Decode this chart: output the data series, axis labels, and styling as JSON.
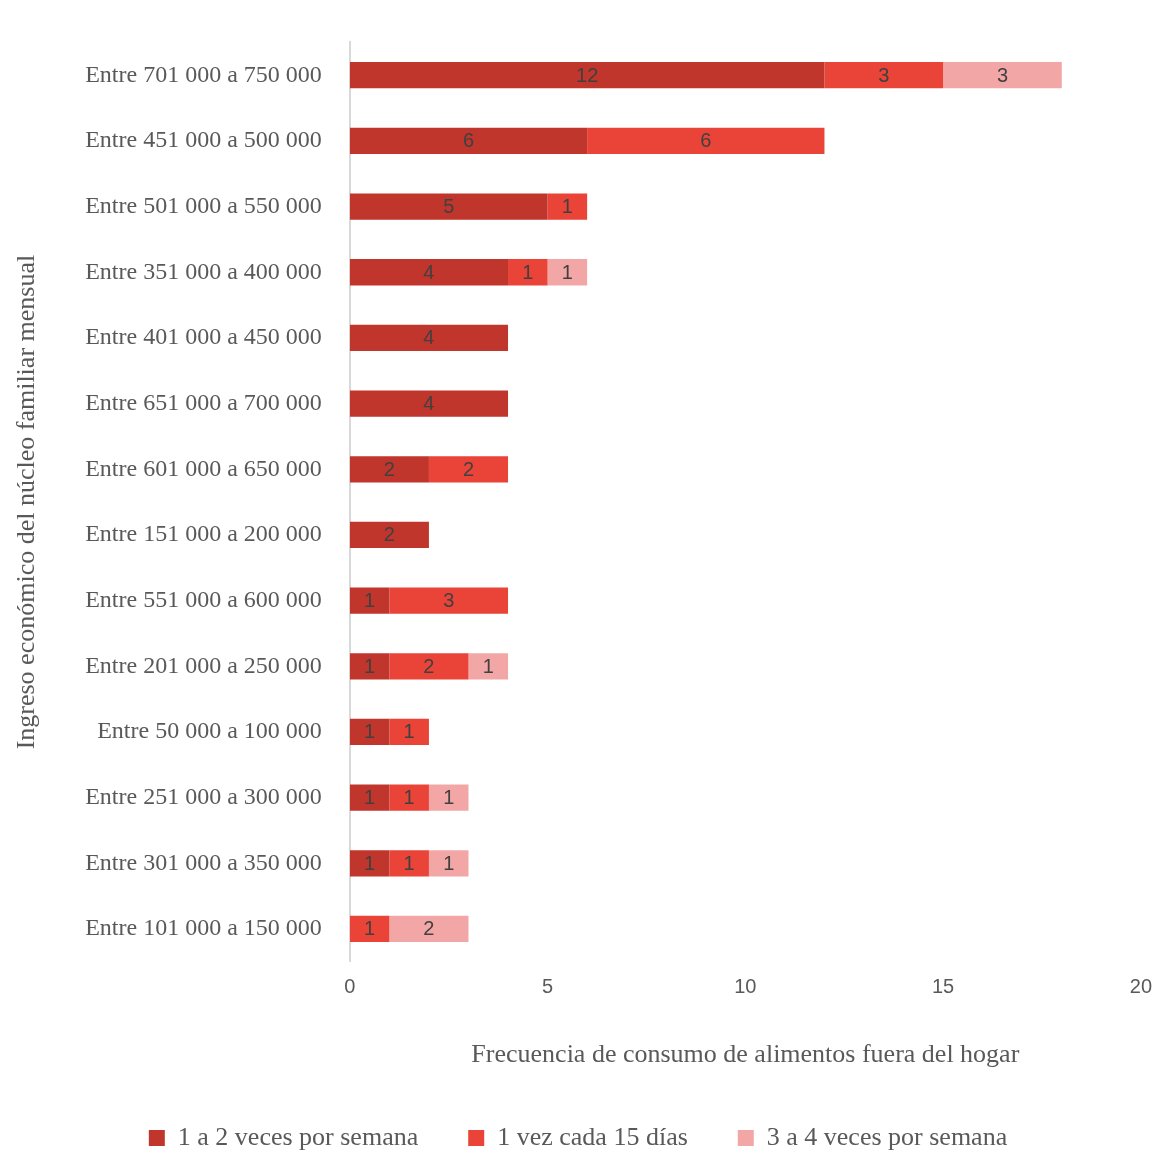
{
  "chart_data": {
    "type": "bar",
    "orientation": "horizontal",
    "stacked": true,
    "xlabel": "Frecuencia de consumo de alimentos fuera del hogar",
    "ylabel": "Ingreso económico del núcleo familiar mensual",
    "categories": [
      "Entre 701 000 a 750 000",
      "Entre 451 000 a 500 000",
      "Entre 501 000 a 550 000",
      "Entre 351 000 a 400 000",
      "Entre 401 000 a 450 000",
      "Entre 651 000 a 700 000",
      "Entre 601 000 a 650 000",
      "Entre 151 000 a 200 000",
      "Entre 551 000 a 600 000",
      "Entre 201 000 a 250 000",
      "Entre 50 000 a 100 000",
      "Entre 251 000 a 300 000",
      "Entre 301 000 a 350 000",
      "Entre 101 000 a 150 000"
    ],
    "series": [
      {
        "name": "1 a 2 veces por semana",
        "color": "#c0362c",
        "values": [
          12,
          6,
          5,
          4,
          4,
          4,
          2,
          2,
          1,
          1,
          1,
          1,
          1,
          null
        ]
      },
      {
        "name": "1 vez cada 15 días",
        "color": "#ea4338",
        "values": [
          3,
          6,
          1,
          1,
          null,
          null,
          2,
          null,
          3,
          2,
          1,
          1,
          1,
          1
        ]
      },
      {
        "name": "3 a 4 veces por semana",
        "color": "#f2a7a6",
        "values": [
          3,
          null,
          null,
          1,
          null,
          null,
          null,
          null,
          null,
          1,
          null,
          1,
          1,
          2
        ]
      }
    ],
    "xlim": [
      0,
      20
    ],
    "xticks": [
      0,
      5,
      10,
      15,
      20
    ],
    "grid": false,
    "legend": "bottom",
    "data_labels": true
  }
}
